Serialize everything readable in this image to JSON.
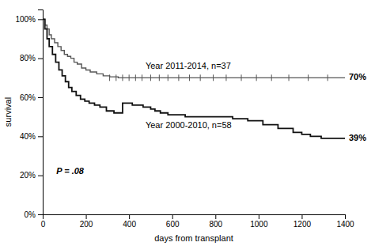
{
  "chart_data": {
    "type": "step",
    "xlabel": "days from transplant",
    "ylabel": "survival",
    "xlim": [
      0,
      1400
    ],
    "ylim": [
      0,
      1.05
    ],
    "xticks": [
      0,
      200,
      400,
      600,
      800,
      1000,
      1200,
      1400
    ],
    "yticks": [
      {
        "value": 0,
        "label": "0%"
      },
      {
        "value": 0.2,
        "label": "20%"
      },
      {
        "value": 0.4,
        "label": "40%"
      },
      {
        "value": 0.6,
        "label": "60%"
      },
      {
        "value": 0.8,
        "label": "80%"
      },
      {
        "value": 1.0,
        "label": "100%"
      }
    ],
    "annotations": [
      "P = .08"
    ],
    "series": [
      {
        "name": "Year 2011-2014, n=37",
        "color": "#555555",
        "x": [
          0,
          10,
          20,
          30,
          40,
          55,
          70,
          85,
          100,
          115,
          130,
          145,
          160,
          180,
          200,
          220,
          250,
          280,
          310,
          350,
          400,
          500,
          600,
          700,
          800,
          900,
          1000,
          1100,
          1200,
          1300,
          1400
        ],
        "values": [
          1.0,
          0.97,
          0.95,
          0.92,
          0.9,
          0.88,
          0.86,
          0.84,
          0.82,
          0.81,
          0.8,
          0.78,
          0.77,
          0.75,
          0.74,
          0.73,
          0.72,
          0.71,
          0.705,
          0.7,
          0.7,
          0.7,
          0.7,
          0.7,
          0.7,
          0.7,
          0.7,
          0.7,
          0.7,
          0.7,
          0.7
        ],
        "censors": {
          "x": [
            310,
            340,
            370,
            400,
            430,
            460,
            500,
            540,
            580,
            630,
            680,
            730,
            790,
            850,
            920,
            990,
            1060,
            1140,
            1230,
            1320
          ],
          "value": 0.7
        },
        "end_label": {
          "value": 0.7,
          "label": "70%"
        }
      },
      {
        "name": "Year 2000-2010, n=58",
        "color": "#111111",
        "x": [
          0,
          10,
          20,
          30,
          45,
          60,
          75,
          90,
          105,
          120,
          135,
          155,
          175,
          195,
          215,
          240,
          265,
          295,
          330,
          370,
          415,
          465,
          500,
          520,
          545,
          580,
          620,
          660,
          710,
          760,
          820,
          880,
          950,
          1020,
          1090,
          1160,
          1200,
          1240,
          1290,
          1340,
          1400
        ],
        "values": [
          1.0,
          0.95,
          0.9,
          0.86,
          0.82,
          0.78,
          0.74,
          0.71,
          0.68,
          0.65,
          0.63,
          0.61,
          0.59,
          0.58,
          0.57,
          0.56,
          0.55,
          0.53,
          0.52,
          0.57,
          0.56,
          0.55,
          0.54,
          0.53,
          0.52,
          0.51,
          0.51,
          0.5,
          0.5,
          0.5,
          0.5,
          0.49,
          0.48,
          0.46,
          0.44,
          0.42,
          0.41,
          0.4,
          0.39,
          0.39,
          0.39
        ],
        "end_label": {
          "value": 0.39,
          "label": "39%"
        }
      }
    ]
  }
}
